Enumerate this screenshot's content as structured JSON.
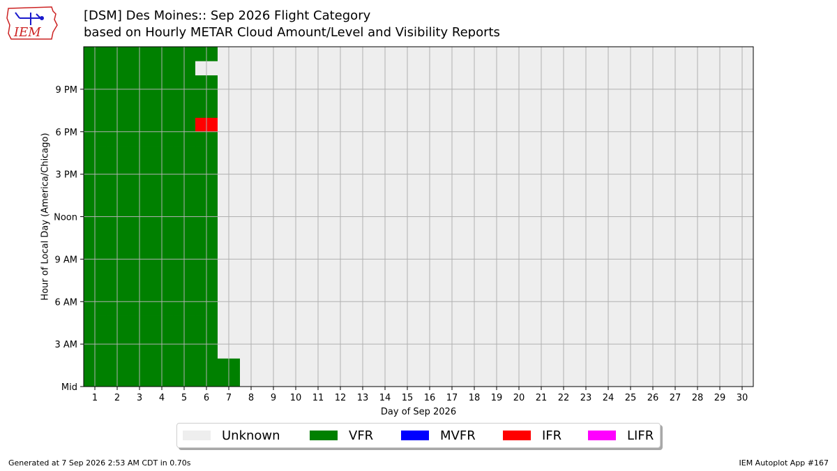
{
  "header": {
    "title_line1": "[DSM] Des Moines:: Sep 2026 Flight Category",
    "title_line2": "based on Hourly METAR Cloud Amount/Level and Visibility Reports",
    "logo_text": "IEM"
  },
  "footer": {
    "generated": "Generated at 7 Sep 2026 2:53 AM CDT in 0.70s",
    "app": "IEM Autoplot App #167"
  },
  "colors": {
    "Unknown": "#eeeeee",
    "VFR": "#008000",
    "MVFR": "#0000ff",
    "IFR": "#ff0000",
    "LIFR": "#ff00ff",
    "grid": "#b0b0b0",
    "logo_red": "#cc2222",
    "logo_blue": "#1a1acc"
  },
  "legend": [
    {
      "label": "Unknown",
      "color": "#eeeeee"
    },
    {
      "label": "VFR",
      "color": "#008000"
    },
    {
      "label": "MVFR",
      "color": "#0000ff"
    },
    {
      "label": "IFR",
      "color": "#ff0000"
    },
    {
      "label": "LIFR",
      "color": "#ff00ff"
    }
  ],
  "chart_data": {
    "type": "heatmap",
    "title": "[DSM] Des Moines:: Sep 2026 Flight Category",
    "subtitle": "based on Hourly METAR Cloud Amount/Level and Visibility Reports",
    "xlabel": "Day of Sep 2026",
    "ylabel": "Hour of Local Day (America/Chicago)",
    "x": [
      1,
      2,
      3,
      4,
      5,
      6,
      7,
      8,
      9,
      10,
      11,
      12,
      13,
      14,
      15,
      16,
      17,
      18,
      19,
      20,
      21,
      22,
      23,
      24,
      25,
      26,
      27,
      28,
      29,
      30
    ],
    "xlim": [
      0.5,
      30.5
    ],
    "ylim": [
      0,
      24
    ],
    "yticks": [
      {
        "hour": 0,
        "label": "Mid"
      },
      {
        "hour": 3,
        "label": "3 AM"
      },
      {
        "hour": 6,
        "label": "6 AM"
      },
      {
        "hour": 9,
        "label": "9 AM"
      },
      {
        "hour": 12,
        "label": "Noon"
      },
      {
        "hour": 15,
        "label": "3 PM"
      },
      {
        "hour": 18,
        "label": "6 PM"
      },
      {
        "hour": 21,
        "label": "9 PM"
      }
    ],
    "categories": [
      "Unknown",
      "VFR",
      "MVFR",
      "IFR",
      "LIFR"
    ],
    "default_category": "Unknown",
    "cells": [
      {
        "days": [
          1,
          6
        ],
        "hours": [
          0,
          23
        ],
        "category": "VFR"
      },
      {
        "days": [
          6,
          6
        ],
        "hours": [
          22,
          22
        ],
        "category": "Unknown"
      },
      {
        "days": [
          6,
          6
        ],
        "hours": [
          18,
          18
        ],
        "category": "IFR"
      },
      {
        "days": [
          7,
          7
        ],
        "hours": [
          0,
          1
        ],
        "category": "VFR"
      }
    ],
    "grid": true,
    "legend_position": "bottom"
  }
}
